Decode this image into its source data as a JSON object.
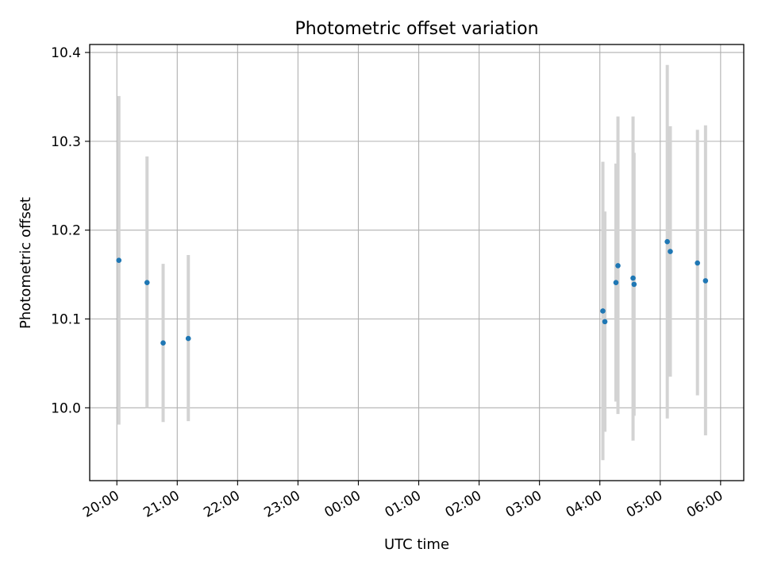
{
  "chart_data": {
    "type": "scatter",
    "title": "Photometric offset variation",
    "xlabel": "UTC time",
    "ylabel": "Photometric offset",
    "x_axis_type": "time",
    "xlim": [
      "19:33",
      "06:23"
    ],
    "ylim": [
      9.918,
      10.409
    ],
    "grid": true,
    "marker_color": "#1f77b4",
    "errorbar_color": "#d3d3d3",
    "x_ticks": [
      "20:00",
      "21:00",
      "22:00",
      "23:00",
      "00:00",
      "01:00",
      "02:00",
      "03:00",
      "04:00",
      "05:00",
      "06:00"
    ],
    "y_ticks": [
      "10.0",
      "10.1",
      "10.2",
      "10.3",
      "10.4"
    ],
    "points": [
      {
        "x": "20:02",
        "y": 10.166,
        "y_low": 9.981,
        "y_high": 10.351
      },
      {
        "x": "20:30",
        "y": 10.141,
        "y_low": 10.0,
        "y_high": 10.283
      },
      {
        "x": "20:46",
        "y": 10.073,
        "y_low": 9.984,
        "y_high": 10.162
      },
      {
        "x": "21:11",
        "y": 10.078,
        "y_low": 9.985,
        "y_high": 10.172
      },
      {
        "x": "04:03",
        "y": 10.109,
        "y_low": 9.941,
        "y_high": 10.277
      },
      {
        "x": "04:05",
        "y": 10.097,
        "y_low": 9.973,
        "y_high": 10.221
      },
      {
        "x": "04:16",
        "y": 10.141,
        "y_low": 10.007,
        "y_high": 10.275
      },
      {
        "x": "04:18",
        "y": 10.16,
        "y_low": 9.993,
        "y_high": 10.328
      },
      {
        "x": "04:33",
        "y": 10.146,
        "y_low": 9.963,
        "y_high": 10.328
      },
      {
        "x": "04:34",
        "y": 10.139,
        "y_low": 9.991,
        "y_high": 10.287
      },
      {
        "x": "05:07",
        "y": 10.187,
        "y_low": 9.988,
        "y_high": 10.386
      },
      {
        "x": "05:10",
        "y": 10.176,
        "y_low": 10.035,
        "y_high": 10.317
      },
      {
        "x": "05:37",
        "y": 10.163,
        "y_low": 10.014,
        "y_high": 10.313
      },
      {
        "x": "05:45",
        "y": 10.143,
        "y_low": 9.969,
        "y_high": 10.318
      }
    ]
  }
}
